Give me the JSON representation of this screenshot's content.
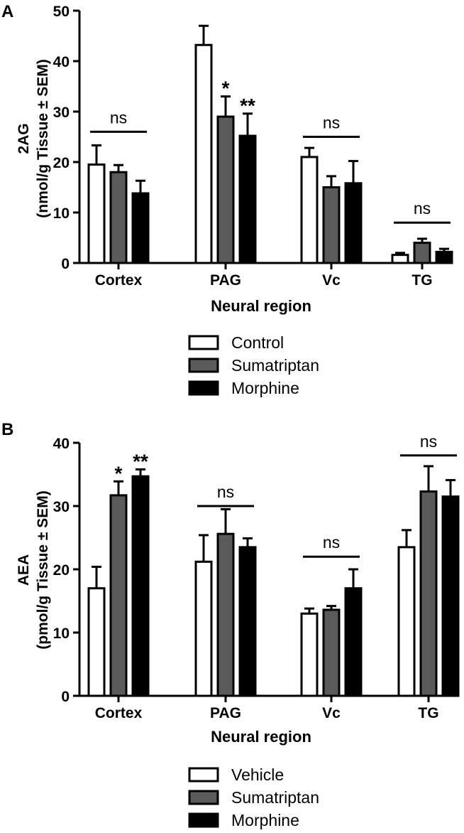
{
  "colors": {
    "control": "#ffffff",
    "sumatriptan": "#5a5a5a",
    "morphine": "#000000"
  },
  "chart_data": [
    {
      "panel": "A",
      "type": "bar",
      "ylabel_line1": "2AG",
      "ylabel_line2": "(nmol/g Tissue ± SEM)",
      "xlabel": "Neural region",
      "ylim": [
        0,
        50
      ],
      "yticks": [
        0,
        10,
        20,
        30,
        40,
        50
      ],
      "categories": [
        "Cortex",
        "PAG",
        "Vc",
        "TG"
      ],
      "series": [
        {
          "name": "Control",
          "color_key": "control",
          "values": [
            19.5,
            43.2,
            21.0,
            1.6
          ],
          "errors": [
            3.8,
            3.8,
            1.8,
            0.4
          ]
        },
        {
          "name": "Sumatriptan",
          "color_key": "sumatriptan",
          "values": [
            18.0,
            29.0,
            15.0,
            4.0
          ],
          "errors": [
            1.4,
            4.0,
            2.2,
            0.8
          ]
        },
        {
          "name": "Morphine",
          "color_key": "morphine",
          "values": [
            13.8,
            25.2,
            15.8,
            2.2
          ],
          "errors": [
            2.5,
            4.4,
            4.4,
            0.6
          ]
        }
      ],
      "annotations": [
        {
          "type": "ns",
          "category": 0,
          "text": "ns",
          "y": 26
        },
        {
          "type": "star",
          "category": 1,
          "series": 1,
          "text": "*"
        },
        {
          "type": "star",
          "category": 1,
          "series": 2,
          "text": "**"
        },
        {
          "type": "ns",
          "category": 2,
          "text": "ns",
          "y": 25
        },
        {
          "type": "ns",
          "category": 3,
          "text": "ns",
          "y": 8
        }
      ]
    },
    {
      "panel": "B",
      "type": "bar",
      "ylabel_line1": "AEA",
      "ylabel_line2": "(pmol/g Tissue ± SEM)",
      "xlabel": "Neural region",
      "ylim": [
        0,
        40
      ],
      "yticks": [
        0,
        10,
        20,
        30,
        40
      ],
      "categories": [
        "Cortex",
        "PAG",
        "Vc",
        "TG"
      ],
      "series": [
        {
          "name": "Vehicle",
          "color_key": "control",
          "values": [
            17.0,
            21.2,
            13.0,
            23.5
          ],
          "errors": [
            3.4,
            4.2,
            0.8,
            2.7
          ]
        },
        {
          "name": "Sumatriptan",
          "color_key": "sumatriptan",
          "values": [
            31.7,
            25.6,
            13.6,
            32.3
          ],
          "errors": [
            2.2,
            3.9,
            0.6,
            4.0
          ]
        },
        {
          "name": "Morphine",
          "color_key": "morphine",
          "values": [
            34.7,
            23.5,
            17.0,
            31.5
          ],
          "errors": [
            1.1,
            1.4,
            3.0,
            2.6
          ]
        }
      ],
      "annotations": [
        {
          "type": "star",
          "category": 0,
          "series": 1,
          "text": "*"
        },
        {
          "type": "star",
          "category": 0,
          "series": 2,
          "text": "**"
        },
        {
          "type": "ns",
          "category": 1,
          "text": "ns",
          "y": 30
        },
        {
          "type": "ns",
          "category": 2,
          "text": "ns",
          "y": 22
        },
        {
          "type": "ns",
          "category": 3,
          "text": "ns",
          "y": 38
        }
      ]
    }
  ]
}
